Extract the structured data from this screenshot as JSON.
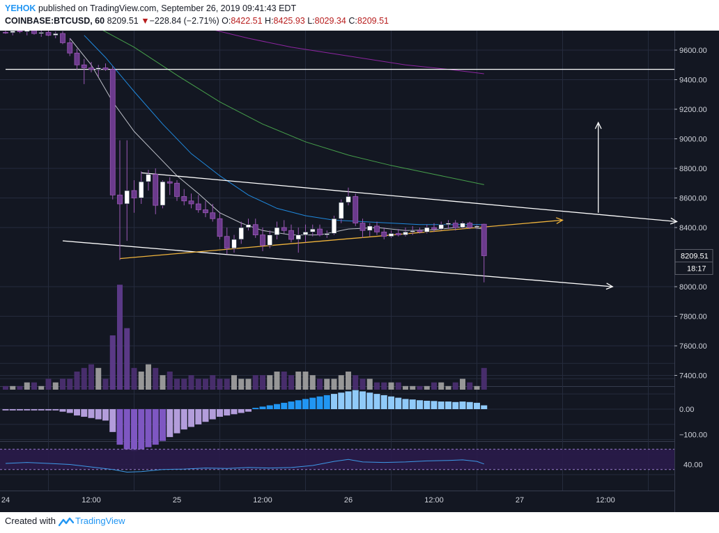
{
  "header": {
    "author": "YEHOK",
    "published_text": "published on TradingView.com, September 26, 2019 09:41:43 EDT",
    "symbol": "COINBASE:BTCUSD, 60",
    "last": "8209.51",
    "arrow": "▼",
    "change": "−228.84 (−2.71%)",
    "o_label": "O:",
    "o_value": "8422.51",
    "h_label": "H:",
    "h_value": "8425.93",
    "l_label": "L:",
    "l_value": "8029.34",
    "c_label": "C:",
    "c_value": "8209.51"
  },
  "footer": {
    "created_with": "Created with",
    "brand": "TradingView"
  },
  "colors": {
    "background": "#131722",
    "grid": "#252b3d",
    "bull_body": "#ffffff",
    "bear_body": "#6b3a8c",
    "wick": "#9b59b6",
    "macd_positive": "#2196f3",
    "macd_negative": "#b39ddb",
    "rsi_band": "#2a1b4a"
  },
  "chart_data": {
    "type": "candlestick",
    "symbol": "COINBASE:BTCUSD",
    "interval": "60",
    "price_axis": {
      "ylim": [
        7300,
        9750
      ],
      "ticks": [
        9600,
        9400,
        9200,
        9000,
        8800,
        8600,
        8400,
        8000,
        7800,
        7600,
        7400
      ]
    },
    "price_tick_labels": [
      "9600.00",
      "9400.00",
      "9200.00",
      "9000.00",
      "8800.00",
      "8600.00",
      "8400.00",
      "8000.00",
      "7800.00",
      "7600.00",
      "7400.00"
    ],
    "last_price_label": "8209.51",
    "countdown_label": "18:17",
    "time_axis": {
      "labels": [
        {
          "t": 0,
          "text": "24"
        },
        {
          "t": 12,
          "text": "12:00"
        },
        {
          "t": 24,
          "text": "25"
        },
        {
          "t": 36,
          "text": "12:00"
        },
        {
          "t": 48,
          "text": "26"
        },
        {
          "t": 60,
          "text": "12:00"
        },
        {
          "t": 72,
          "text": "27"
        },
        {
          "t": 84,
          "text": "12:00"
        }
      ]
    },
    "candles": [
      [
        0,
        9720,
        9730,
        9710,
        9718
      ],
      [
        1,
        9718,
        9740,
        9700,
        9730
      ],
      [
        2,
        9730,
        9750,
        9715,
        9725
      ],
      [
        3,
        9725,
        9740,
        9700,
        9735
      ],
      [
        4,
        9735,
        9748,
        9705,
        9712
      ],
      [
        5,
        9712,
        9735,
        9690,
        9720
      ],
      [
        6,
        9720,
        9735,
        9695,
        9700
      ],
      [
        7,
        9700,
        9725,
        9680,
        9712
      ],
      [
        8,
        9712,
        9728,
        9640,
        9650
      ],
      [
        9,
        9650,
        9680,
        9560,
        9580
      ],
      [
        10,
        9580,
        9610,
        9470,
        9500
      ],
      [
        11,
        9500,
        9540,
        9370,
        9480
      ],
      [
        12,
        9480,
        9520,
        9450,
        9470
      ],
      [
        13,
        9470,
        9500,
        9420,
        9480
      ],
      [
        14,
        9480,
        9510,
        9460,
        9470
      ],
      [
        15,
        9470,
        9490,
        8590,
        8620
      ],
      [
        16,
        8620,
        8990,
        8180,
        8560
      ],
      [
        17,
        8560,
        8990,
        8310,
        8650
      ],
      [
        18,
        8650,
        8720,
        8500,
        8600
      ],
      [
        19,
        8600,
        8780,
        8560,
        8710
      ],
      [
        20,
        8710,
        8790,
        8650,
        8760
      ],
      [
        21,
        8760,
        8800,
        8490,
        8550
      ],
      [
        22,
        8550,
        8720,
        8530,
        8710
      ],
      [
        23,
        8710,
        8740,
        8620,
        8700
      ],
      [
        24,
        8700,
        8720,
        8580,
        8610
      ],
      [
        25,
        8610,
        8660,
        8550,
        8580
      ],
      [
        26,
        8580,
        8630,
        8530,
        8560
      ],
      [
        27,
        8560,
        8620,
        8500,
        8520
      ],
      [
        28,
        8520,
        8580,
        8470,
        8500
      ],
      [
        29,
        8500,
        8560,
        8440,
        8460
      ],
      [
        30,
        8460,
        8500,
        8320,
        8340
      ],
      [
        31,
        8340,
        8400,
        8220,
        8260
      ],
      [
        32,
        8260,
        8350,
        8230,
        8320
      ],
      [
        33,
        8320,
        8440,
        8290,
        8400
      ],
      [
        34,
        8400,
        8460,
        8380,
        8420
      ],
      [
        35,
        8420,
        8460,
        8330,
        8350
      ],
      [
        36,
        8350,
        8400,
        8240,
        8280
      ],
      [
        37,
        8280,
        8380,
        8260,
        8350
      ],
      [
        38,
        8350,
        8440,
        8320,
        8400
      ],
      [
        39,
        8400,
        8450,
        8360,
        8380
      ],
      [
        40,
        8380,
        8420,
        8300,
        8320
      ],
      [
        41,
        8320,
        8400,
        8230,
        8350
      ],
      [
        42,
        8350,
        8420,
        8300,
        8370
      ],
      [
        43,
        8370,
        8420,
        8340,
        8390
      ],
      [
        44,
        8390,
        8420,
        8340,
        8350
      ],
      [
        45,
        8350,
        8380,
        8330,
        8360
      ],
      [
        46,
        8360,
        8480,
        8350,
        8460
      ],
      [
        47,
        8460,
        8590,
        8430,
        8570
      ],
      [
        48,
        8570,
        8670,
        8550,
        8610
      ],
      [
        49,
        8610,
        8630,
        8410,
        8430
      ],
      [
        50,
        8430,
        8460,
        8330,
        8380
      ],
      [
        51,
        8380,
        8430,
        8340,
        8410
      ],
      [
        52,
        8410,
        8440,
        8350,
        8370
      ],
      [
        53,
        8370,
        8400,
        8320,
        8340
      ],
      [
        54,
        8340,
        8380,
        8330,
        8360
      ],
      [
        55,
        8360,
        8390,
        8340,
        8350
      ],
      [
        56,
        8350,
        8400,
        8340,
        8370
      ],
      [
        57,
        8370,
        8410,
        8350,
        8380
      ],
      [
        58,
        8380,
        8400,
        8360,
        8370
      ],
      [
        59,
        8370,
        8420,
        8360,
        8400
      ],
      [
        60,
        8400,
        8430,
        8370,
        8390
      ],
      [
        61,
        8390,
        8440,
        8380,
        8420
      ],
      [
        62,
        8420,
        8450,
        8390,
        8430
      ],
      [
        63,
        8430,
        8450,
        8380,
        8400
      ],
      [
        64,
        8400,
        8440,
        8390,
        8430
      ],
      [
        65,
        8430,
        8440,
        8390,
        8400
      ],
      [
        66,
        8400,
        8420,
        8390,
        8410
      ],
      [
        67,
        8422.51,
        8425.93,
        8029.34,
        8209.51
      ]
    ],
    "moving_averages": [
      {
        "color": "#d1d4dc",
        "points": [
          [
            9,
            9680
          ],
          [
            12,
            9500
          ],
          [
            15,
            9250
          ],
          [
            18,
            9050
          ],
          [
            21,
            8900
          ],
          [
            24,
            8750
          ],
          [
            27,
            8630
          ],
          [
            30,
            8500
          ],
          [
            33,
            8430
          ],
          [
            36,
            8380
          ],
          [
            40,
            8350
          ],
          [
            44,
            8350
          ],
          [
            48,
            8390
          ],
          [
            52,
            8400
          ],
          [
            56,
            8380
          ],
          [
            60,
            8385
          ],
          [
            64,
            8405
          ],
          [
            67,
            8390
          ]
        ]
      },
      {
        "color": "#2196f3",
        "points": [
          [
            11,
            9700
          ],
          [
            14,
            9550
          ],
          [
            18,
            9320
          ],
          [
            22,
            9100
          ],
          [
            26,
            8900
          ],
          [
            30,
            8750
          ],
          [
            34,
            8620
          ],
          [
            38,
            8530
          ],
          [
            42,
            8480
          ],
          [
            46,
            8450
          ],
          [
            50,
            8440
          ],
          [
            54,
            8430
          ],
          [
            58,
            8420
          ],
          [
            62,
            8420
          ],
          [
            67,
            8420
          ]
        ]
      },
      {
        "color": "#4caf50",
        "points": [
          [
            13,
            9750
          ],
          [
            18,
            9620
          ],
          [
            24,
            9430
          ],
          [
            30,
            9250
          ],
          [
            36,
            9100
          ],
          [
            42,
            8980
          ],
          [
            48,
            8890
          ],
          [
            54,
            8820
          ],
          [
            60,
            8760
          ],
          [
            67,
            8690
          ]
        ]
      },
      {
        "color": "#9c27b0",
        "points": [
          [
            28,
            9750
          ],
          [
            34,
            9680
          ],
          [
            40,
            9620
          ],
          [
            48,
            9560
          ],
          [
            56,
            9500
          ],
          [
            62,
            9470
          ],
          [
            67,
            9440
          ]
        ]
      }
    ],
    "drawings": [
      {
        "kind": "horizontal",
        "price": 9470,
        "from_t": 0,
        "to_t": 96
      },
      {
        "kind": "trend",
        "from": [
          19,
          8770
        ],
        "to": [
          94,
          8440
        ],
        "arrow": true
      },
      {
        "kind": "trend",
        "from": [
          8,
          8310
        ],
        "to": [
          85,
          8000
        ],
        "arrow": true
      },
      {
        "kind": "trend_orange",
        "from": [
          16,
          8190
        ],
        "to": [
          78,
          8450
        ],
        "arrow": true
      },
      {
        "kind": "vertical_arrow",
        "t": 83,
        "from_price": 8500,
        "to_price": 9110
      }
    ],
    "volume": [
      1,
      1,
      1,
      2,
      2,
      1,
      3,
      2,
      3,
      3,
      5,
      6,
      7,
      6,
      3,
      15,
      29,
      17,
      6,
      5,
      7,
      6,
      4,
      5,
      3,
      3,
      4,
      3,
      3,
      4,
      3,
      3,
      4,
      3,
      3,
      4,
      4,
      4,
      5,
      5,
      4,
      5,
      5,
      4,
      3,
      3,
      3,
      4,
      5,
      4,
      3,
      3,
      2,
      2,
      2,
      2,
      1,
      1,
      1,
      1,
      2,
      2,
      1,
      2,
      3,
      2,
      1,
      6
    ],
    "macd_axis": {
      "ticks": [
        0,
        -100
      ],
      "tick_labels": [
        "0.00",
        "−100.00"
      ]
    },
    "macd_histogram": [
      -5,
      -5,
      -5,
      -5,
      -5,
      -5,
      -5,
      -5,
      -10,
      -15,
      -25,
      -30,
      -35,
      -40,
      -45,
      -90,
      -140,
      -160,
      -165,
      -160,
      -150,
      -140,
      -125,
      -110,
      -95,
      -80,
      -70,
      -60,
      -50,
      -40,
      -30,
      -25,
      -20,
      -15,
      -10,
      5,
      10,
      15,
      20,
      25,
      30,
      35,
      40,
      45,
      50,
      55,
      60,
      65,
      70,
      75,
      70,
      65,
      60,
      55,
      50,
      45,
      40,
      38,
      35,
      33,
      32,
      30,
      30,
      28,
      30,
      28,
      25,
      15
    ],
    "rsi_axis": {
      "ticks": [
        40
      ],
      "tick_labels": [
        "40.00"
      ]
    },
    "rsi_band": [
      30,
      70
    ],
    "rsi": [
      [
        0,
        42
      ],
      [
        3,
        44
      ],
      [
        6,
        42
      ],
      [
        9,
        40
      ],
      [
        12,
        35
      ],
      [
        15,
        30
      ],
      [
        17,
        25
      ],
      [
        19,
        26
      ],
      [
        22,
        30
      ],
      [
        25,
        31
      ],
      [
        28,
        33
      ],
      [
        31,
        32
      ],
      [
        34,
        34
      ],
      [
        37,
        33
      ],
      [
        40,
        34
      ],
      [
        43,
        38
      ],
      [
        46,
        46
      ],
      [
        48,
        50
      ],
      [
        50,
        45
      ],
      [
        53,
        44
      ],
      [
        56,
        45
      ],
      [
        59,
        47
      ],
      [
        62,
        48
      ],
      [
        64,
        49
      ],
      [
        66,
        46
      ],
      [
        67,
        41
      ]
    ]
  }
}
